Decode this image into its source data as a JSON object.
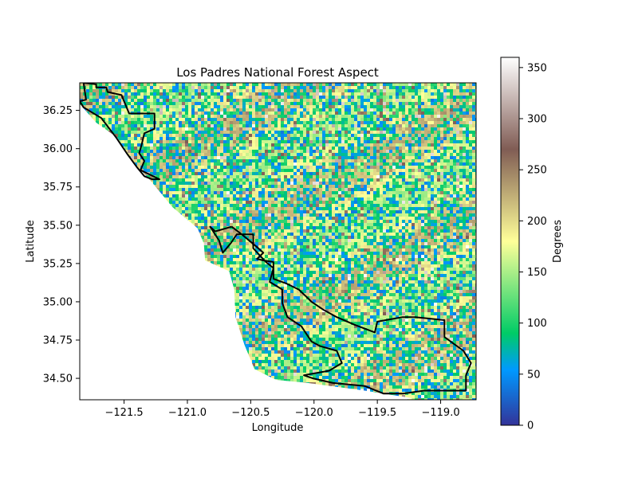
{
  "chart_data": {
    "type": "heatmap",
    "title": "Los Padres National Forest Aspect",
    "xlabel": "Longitude",
    "ylabel": "Latitude",
    "xlim": [
      -121.85,
      -118.72
    ],
    "ylim": [
      34.36,
      36.43
    ],
    "x_ticks": [
      -121.5,
      -121.0,
      -120.5,
      -120.0,
      -119.5,
      -119.0
    ],
    "x_tick_labels": [
      "−121.5",
      "−121.0",
      "−120.5",
      "−120.0",
      "−119.5",
      "−119.0"
    ],
    "y_ticks": [
      34.5,
      34.75,
      35.0,
      35.25,
      35.5,
      35.75,
      36.0,
      36.25
    ],
    "y_tick_labels": [
      "34.50",
      "34.75",
      "35.00",
      "35.25",
      "35.50",
      "35.75",
      "36.00",
      "36.25"
    ],
    "grid": false,
    "colorbar": {
      "label": "Degrees",
      "range": [
        0,
        360
      ],
      "ticks": [
        0,
        50,
        100,
        150,
        200,
        250,
        300,
        350
      ],
      "tick_labels": [
        "0",
        "50",
        "100",
        "150",
        "200",
        "250",
        "300",
        "350"
      ],
      "colormap": "terrain",
      "colors": [
        "#333399",
        "#0099ff",
        "#00cc66",
        "#ffff99",
        "#805c54",
        "#ffffff"
      ]
    },
    "coastline": [
      [
        -121.85,
        36.43
      ],
      [
        -121.86,
        36.3
      ],
      [
        -121.72,
        36.17
      ],
      [
        -121.55,
        36.07
      ],
      [
        -121.45,
        35.93
      ],
      [
        -121.3,
        35.8
      ],
      [
        -121.12,
        35.62
      ],
      [
        -120.92,
        35.48
      ],
      [
        -120.87,
        35.38
      ],
      [
        -120.86,
        35.27
      ],
      [
        -120.67,
        35.2
      ],
      [
        -120.63,
        35.08
      ],
      [
        -120.62,
        34.9
      ],
      [
        -120.55,
        34.72
      ],
      [
        -120.47,
        34.56
      ],
      [
        -120.3,
        34.49
      ],
      [
        -120.05,
        34.47
      ],
      [
        -119.6,
        34.42
      ],
      [
        -119.22,
        34.37
      ]
    ],
    "forest_boundary_north": [
      [
        -121.85,
        36.31
      ],
      [
        -121.8,
        36.32
      ],
      [
        -121.82,
        36.43
      ],
      [
        -121.72,
        36.42
      ],
      [
        -121.72,
        36.4
      ],
      [
        -121.64,
        36.4
      ],
      [
        -121.63,
        36.37
      ],
      [
        -121.52,
        36.35
      ],
      [
        -121.46,
        36.23
      ],
      [
        -121.26,
        36.23
      ],
      [
        -121.26,
        36.13
      ],
      [
        -121.34,
        36.1
      ],
      [
        -121.36,
        36.03
      ],
      [
        -121.38,
        35.97
      ],
      [
        -121.34,
        35.92
      ],
      [
        -121.37,
        35.86
      ],
      [
        -121.22,
        35.8
      ],
      [
        -121.28,
        35.8
      ],
      [
        -121.34,
        35.82
      ],
      [
        -121.4,
        35.88
      ],
      [
        -121.47,
        35.96
      ],
      [
        -121.56,
        36.07
      ],
      [
        -121.68,
        36.2
      ],
      [
        -121.82,
        36.27
      ],
      [
        -121.85,
        36.31
      ]
    ],
    "forest_boundary_south": [
      [
        -120.65,
        35.49
      ],
      [
        -120.57,
        35.44
      ],
      [
        -120.44,
        35.35
      ],
      [
        -120.4,
        35.32
      ],
      [
        -120.45,
        35.28
      ],
      [
        -120.4,
        35.27
      ],
      [
        -120.32,
        35.26
      ],
      [
        -120.32,
        35.15
      ],
      [
        -120.22,
        35.12
      ],
      [
        -120.12,
        35.08
      ],
      [
        -120.02,
        35.0
      ],
      [
        -119.93,
        34.95
      ],
      [
        -119.82,
        34.9
      ],
      [
        -119.68,
        34.85
      ],
      [
        -119.52,
        34.8
      ],
      [
        -119.5,
        34.87
      ],
      [
        -119.3,
        34.9
      ],
      [
        -119.2,
        34.9
      ],
      [
        -118.97,
        34.88
      ],
      [
        -118.97,
        34.77
      ],
      [
        -118.82,
        34.68
      ],
      [
        -118.76,
        34.6
      ],
      [
        -118.8,
        34.52
      ],
      [
        -118.8,
        34.42
      ],
      [
        -118.95,
        34.42
      ],
      [
        -119.13,
        34.42
      ],
      [
        -119.3,
        34.4
      ],
      [
        -119.45,
        34.4
      ],
      [
        -119.6,
        34.45
      ],
      [
        -119.85,
        34.47
      ],
      [
        -120.01,
        34.5
      ],
      [
        -120.08,
        34.52
      ],
      [
        -119.88,
        34.55
      ],
      [
        -119.78,
        34.6
      ],
      [
        -119.82,
        34.68
      ],
      [
        -119.95,
        34.71
      ],
      [
        -120.02,
        34.74
      ],
      [
        -120.1,
        34.84
      ],
      [
        -120.21,
        34.9
      ],
      [
        -120.25,
        34.99
      ],
      [
        -120.25,
        35.08
      ],
      [
        -120.35,
        35.13
      ],
      [
        -120.32,
        35.22
      ],
      [
        -120.38,
        35.26
      ],
      [
        -120.48,
        35.35
      ],
      [
        -120.48,
        35.44
      ],
      [
        -120.61,
        35.44
      ],
      [
        -120.66,
        35.38
      ],
      [
        -120.72,
        35.32
      ],
      [
        -120.75,
        35.4
      ],
      [
        -120.82,
        35.49
      ],
      [
        -120.78,
        35.46
      ],
      [
        -120.65,
        35.49
      ]
    ]
  }
}
